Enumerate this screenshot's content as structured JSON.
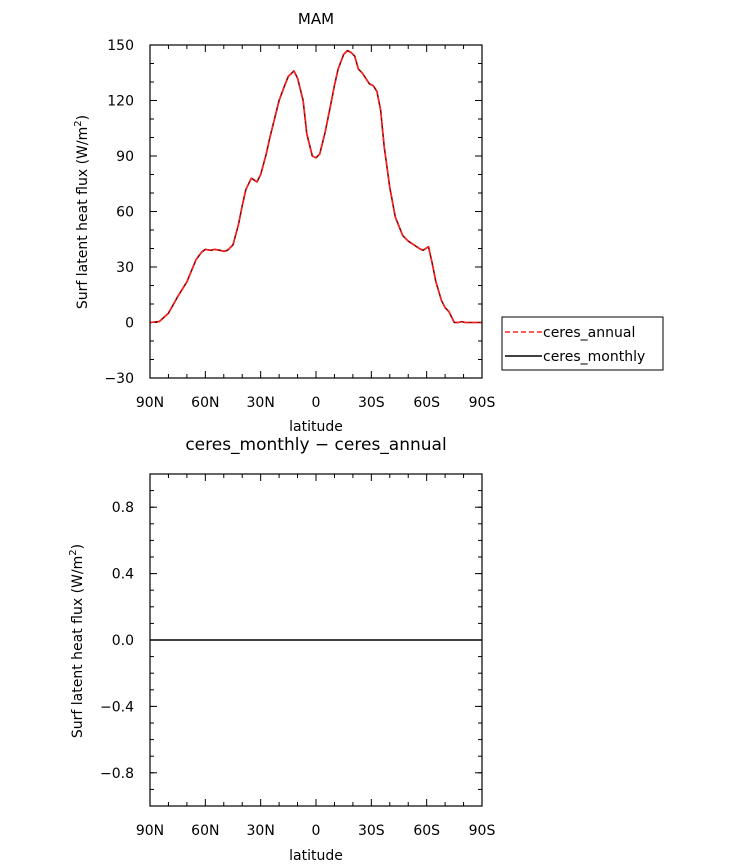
{
  "chart_data": [
    {
      "type": "line",
      "title": "MAM",
      "xlabel": "latitude",
      "ylabel": "Surf latent heat flux (W/m",
      "ylabel_sup": "2",
      "ylabel_close": ")",
      "x_ticks": [
        {
          "value": 90,
          "label": "90N"
        },
        {
          "value": 60,
          "label": "60N"
        },
        {
          "value": 30,
          "label": "30N"
        },
        {
          "value": 0,
          "label": "0"
        },
        {
          "value": -30,
          "label": "30S"
        },
        {
          "value": -60,
          "label": "60S"
        },
        {
          "value": -90,
          "label": "90S"
        }
      ],
      "xlim": [
        90,
        -90
      ],
      "ylim": [
        -30,
        150
      ],
      "y_ticks": [
        {
          "value": -30,
          "label": "−30"
        },
        {
          "value": 0,
          "label": "0"
        },
        {
          "value": 30,
          "label": "30"
        },
        {
          "value": 60,
          "label": "60"
        },
        {
          "value": 90,
          "label": "90"
        },
        {
          "value": 120,
          "label": "120"
        },
        {
          "value": 150,
          "label": "150"
        }
      ],
      "legend": {
        "placement": "right",
        "entries": [
          "ceres_annual",
          "ceres_monthly"
        ]
      },
      "x": [
        90,
        85,
        80,
        75,
        70,
        65,
        62,
        60,
        57,
        55,
        52,
        50,
        48,
        45,
        42,
        40,
        38,
        35,
        32,
        30,
        27,
        25,
        22,
        20,
        17,
        15,
        12,
        10,
        7,
        5,
        2,
        0,
        -2,
        -5,
        -8,
        -10,
        -12,
        -15,
        -17,
        -19,
        -21,
        -23,
        -25,
        -27,
        -29,
        -31,
        -33,
        -35,
        -37,
        -40,
        -43,
        -45,
        -47,
        -50,
        -53,
        -56,
        -58,
        -61,
        -63,
        -65,
        -68,
        -70,
        -72,
        -75,
        -77,
        -79,
        -81,
        -83,
        -86,
        -88,
        -90
      ],
      "series": [
        {
          "name": "ceres_annual",
          "color": "#ff2020",
          "dash": true,
          "values": [
            0,
            0.5,
            5,
            14,
            22,
            34,
            38,
            39.5,
            39,
            39.5,
            39,
            38.5,
            39,
            42,
            53,
            63,
            72,
            78,
            76,
            80,
            91,
            100,
            112,
            120,
            128,
            133,
            136,
            132,
            120,
            102,
            90,
            89,
            91,
            103,
            118,
            128,
            137,
            145,
            147,
            146,
            144,
            137,
            135,
            132,
            129,
            128,
            125,
            115,
            95,
            73,
            57,
            52,
            47,
            44,
            42,
            40,
            39,
            41,
            32,
            22,
            12,
            8,
            6,
            0,
            0,
            0.5,
            0,
            0,
            0,
            0,
            0
          ]
        },
        {
          "name": "ceres_monthly",
          "color": "#000000",
          "dash": false,
          "values": [
            0,
            0.5,
            5,
            14,
            22,
            34,
            38,
            39.5,
            39,
            39.5,
            39,
            38.5,
            39,
            42,
            53,
            63,
            72,
            78,
            76,
            80,
            91,
            100,
            112,
            120,
            128,
            133,
            136,
            132,
            120,
            102,
            90,
            89,
            91,
            103,
            118,
            128,
            137,
            145,
            147,
            146,
            144,
            137,
            135,
            132,
            129,
            128,
            125,
            115,
            95,
            73,
            57,
            52,
            47,
            44,
            42,
            40,
            39,
            41,
            32,
            22,
            12,
            8,
            6,
            0,
            0,
            0.5,
            0,
            0,
            0,
            0,
            0
          ]
        }
      ]
    },
    {
      "type": "line",
      "title": "ceres_monthly − ceres_annual",
      "xlabel": "latitude",
      "ylabel": "Surf latent heat flux (W/m",
      "ylabel_sup": "2",
      "ylabel_close": ")",
      "x_ticks": [
        {
          "value": 90,
          "label": "90N"
        },
        {
          "value": 60,
          "label": "60N"
        },
        {
          "value": 30,
          "label": "30N"
        },
        {
          "value": 0,
          "label": "0"
        },
        {
          "value": -30,
          "label": "30S"
        },
        {
          "value": -60,
          "label": "60S"
        },
        {
          "value": -90,
          "label": "90S"
        }
      ],
      "xlim": [
        90,
        -90
      ],
      "ylim": [
        -1,
        1
      ],
      "y_ticks": [
        {
          "value": -0.8,
          "label": "−0.8"
        },
        {
          "value": -0.4,
          "label": "−0.4"
        },
        {
          "value": 0,
          "label": "0.0"
        },
        {
          "value": 0.4,
          "label": "0.4"
        },
        {
          "value": 0.8,
          "label": "0.8"
        }
      ],
      "x": [
        90,
        -90
      ],
      "series": [
        {
          "name": "",
          "color": "#000000",
          "dash": false,
          "values": [
            0,
            0
          ]
        }
      ]
    }
  ]
}
